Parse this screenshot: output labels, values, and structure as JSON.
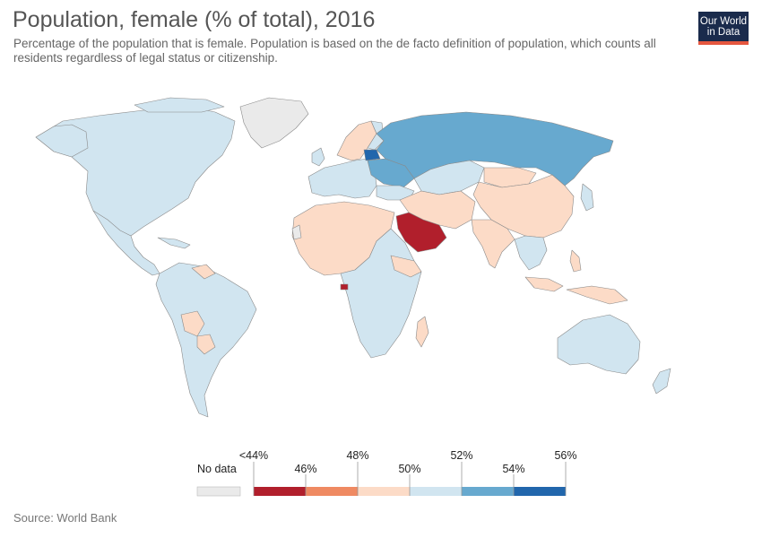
{
  "header": {
    "title": "Population, female (% of total), 2016",
    "subtitle": "Percentage of the population that is female. Population is based on the de facto definition of population, which counts all residents regardless of legal status or citizenship."
  },
  "logo": {
    "line1": "Our World",
    "line2": "in Data"
  },
  "footer": {
    "source": "Source: World Bank"
  },
  "colors": {
    "no_data": "#eaeaea",
    "lt44": "#b11f2c",
    "c44_46": "#b11f2c",
    "c46_48": "#ef8a62",
    "c48_50": "#fcdbc7",
    "c50_52": "#d1e5f0",
    "c52_54": "#67a9cf",
    "c54_56": "#2166ac",
    "border": "#8a8a8a"
  },
  "legend": {
    "no_data_label": "No data",
    "ticks_upper": [
      "<44%",
      "48%",
      "52%",
      "56%"
    ],
    "ticks_lower": [
      "46%",
      "50%",
      "54%"
    ],
    "bins": [
      {
        "label": "<44%–46%",
        "color": "#b11f2c"
      },
      {
        "label": "46%–48%",
        "color": "#ef8a62"
      },
      {
        "label": "48%–50%",
        "color": "#fcdbc7"
      },
      {
        "label": "50%–52%",
        "color": "#d1e5f0"
      },
      {
        "label": "52%–54%",
        "color": "#67a9cf"
      },
      {
        "label": "54%–56%",
        "color": "#2166ac"
      }
    ]
  },
  "regions": [
    {
      "name": "North America",
      "bin": "50-52%"
    },
    {
      "name": "Greenland",
      "bin": "No data"
    },
    {
      "name": "Mexico and Central America",
      "bin": "50-52%"
    },
    {
      "name": "South America",
      "bin": "50-52%"
    },
    {
      "name": "Bolivia",
      "bin": "48-50%"
    },
    {
      "name": "Paraguay",
      "bin": "48-50%"
    },
    {
      "name": "Venezuela",
      "bin": "48-50%"
    },
    {
      "name": "Western Europe",
      "bin": "50-52%"
    },
    {
      "name": "Scandinavia",
      "bin": "48-50%"
    },
    {
      "name": "Russia",
      "bin": "52-54%"
    },
    {
      "name": "Ukraine and Belarus",
      "bin": "52-54%"
    },
    {
      "name": "Latvia and Lithuania",
      "bin": "54-56%"
    },
    {
      "name": "Kazakhstan",
      "bin": "50-52%"
    },
    {
      "name": "Mongolia",
      "bin": "48-50%"
    },
    {
      "name": "China",
      "bin": "48-50%"
    },
    {
      "name": "India",
      "bin": "48-50%"
    },
    {
      "name": "Middle East",
      "bin": "48-50%"
    },
    {
      "name": "Saudi Arabia and Gulf",
      "bin": "<44-46%"
    },
    {
      "name": "North and West Africa",
      "bin": "48-50%"
    },
    {
      "name": "Central and Southern Africa",
      "bin": "50-52%"
    },
    {
      "name": "Equatorial Guinea",
      "bin": "<44-46%"
    },
    {
      "name": "Southeast Asia",
      "bin": "50-52%"
    },
    {
      "name": "Indonesia",
      "bin": "48-50%"
    },
    {
      "name": "Australia",
      "bin": "50-52%"
    },
    {
      "name": "New Zealand",
      "bin": "50-52%"
    },
    {
      "name": "Japan",
      "bin": "50-52%"
    }
  ]
}
